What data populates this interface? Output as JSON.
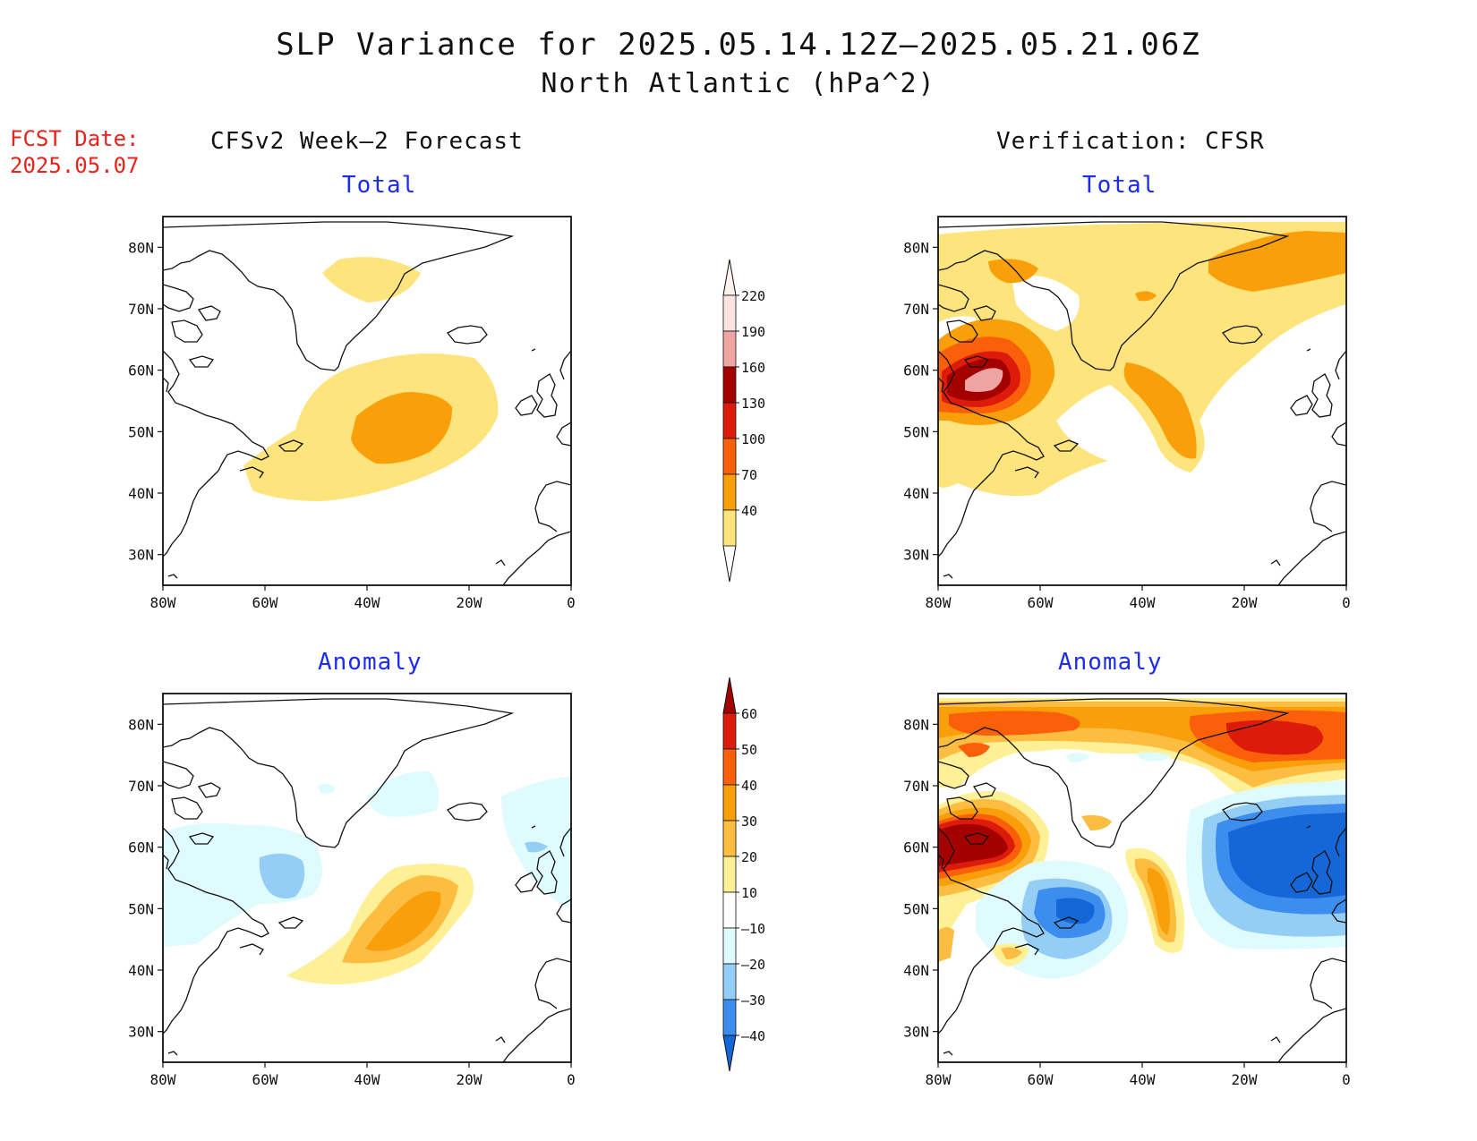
{
  "title": "SLP Variance for 2025.05.14.12Z—2025.05.21.06Z",
  "subtitle": "North Atlantic (hPa^2)",
  "fcst_date": {
    "label": "FCST Date:",
    "value": "2025.05.07"
  },
  "columns": {
    "left": "CFSv2 Week—2 Forecast",
    "right": "Verification: CFSR"
  },
  "panels": {
    "top_left": "Total",
    "top_right": "Total",
    "bottom_left": "Anomaly",
    "bottom_right": "Anomaly"
  },
  "axes": {
    "lat_labels": [
      "80N",
      "70N",
      "60N",
      "50N",
      "40N",
      "30N"
    ],
    "lon_labels": [
      "80W",
      "60W",
      "40W",
      "20W",
      "0"
    ],
    "lat_range": [
      25,
      85
    ],
    "lon_range": [
      -80,
      0
    ]
  },
  "colorbar_total": {
    "labels": [
      "220",
      "190",
      "160",
      "130",
      "100",
      "70",
      "40"
    ],
    "colors": [
      "#fbe3df",
      "#f0a3a3",
      "#a50000",
      "#dd1b0b",
      "#fa6009",
      "#f99f09",
      "#fee47d"
    ]
  },
  "colorbar_anomaly": {
    "labels": [
      "60",
      "50",
      "40",
      "30",
      "20",
      "10",
      "—10",
      "—20",
      "—30",
      "—40"
    ],
    "colors": [
      "#a50000",
      "#dd1b0b",
      "#fa6009",
      "#f99f09",
      "#fdbd40",
      "#fef096",
      "#ffffff",
      "#dffbfd",
      "#94cdf5",
      "#3c8ded",
      "#1566d6"
    ]
  }
}
